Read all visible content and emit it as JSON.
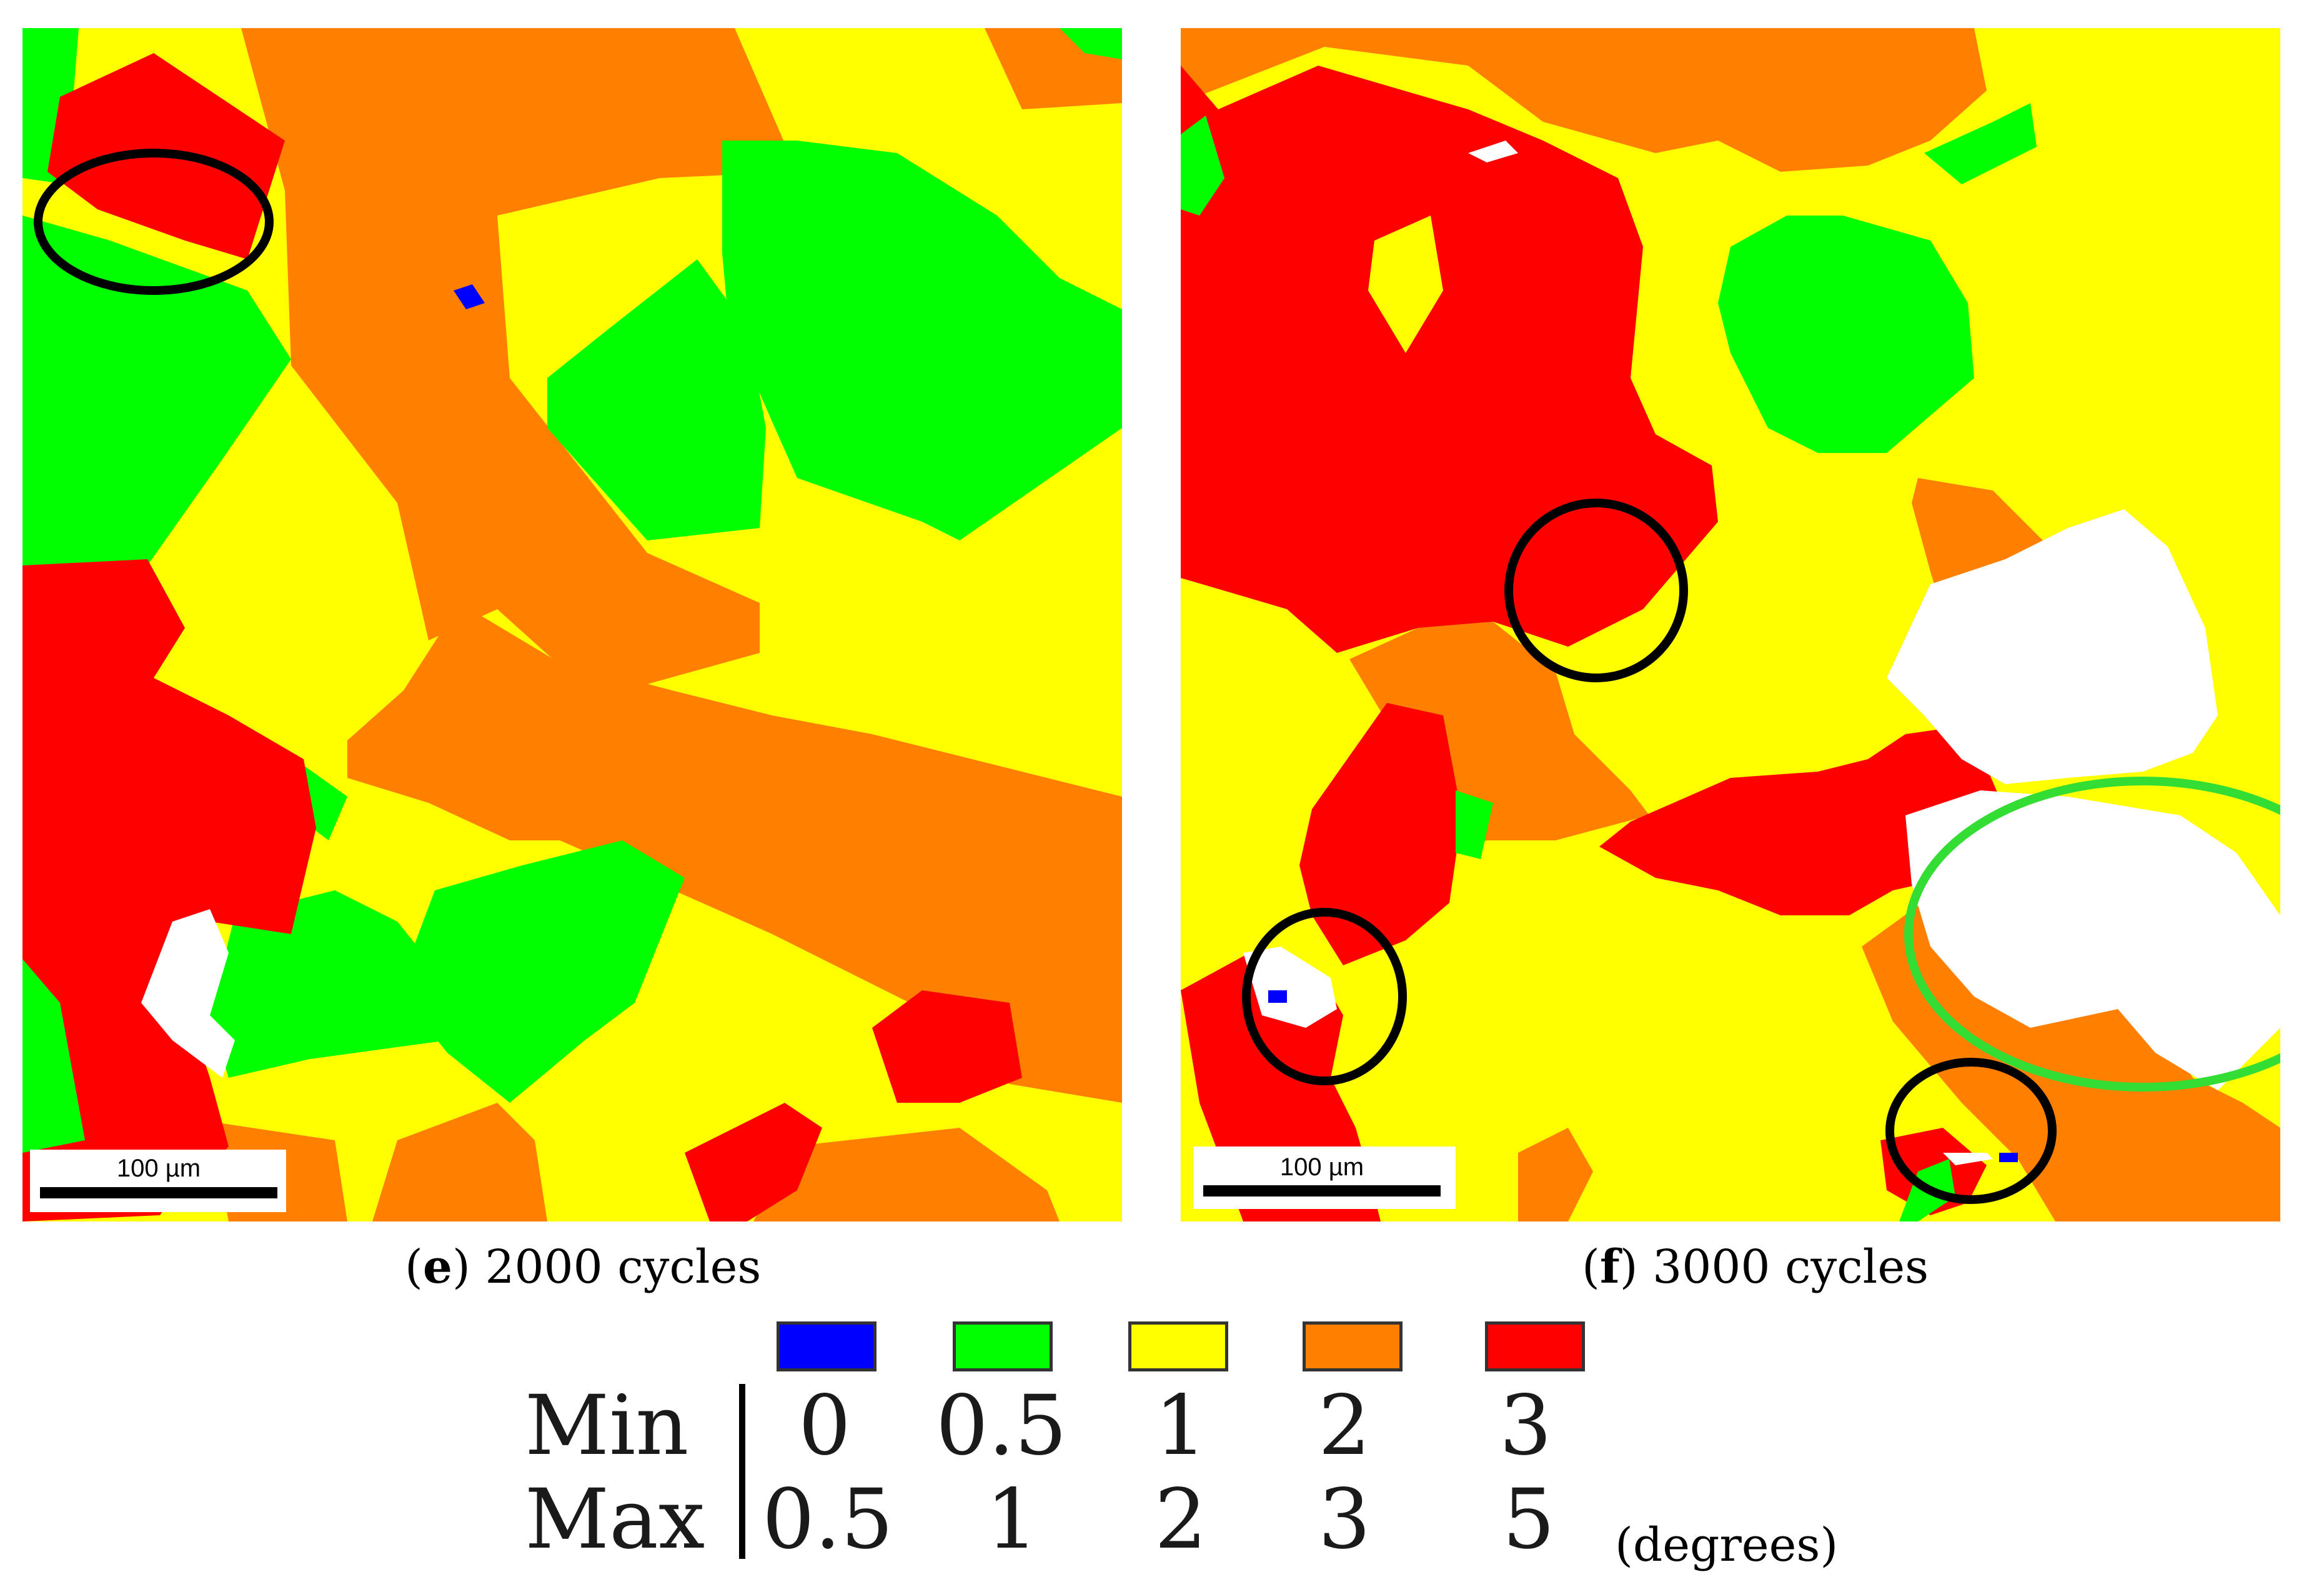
{
  "panels": [
    {
      "id": "e",
      "caption_letter": "e",
      "caption_text": " 2000 cycles",
      "scalebar_label": "100 µm"
    },
    {
      "id": "f",
      "caption_letter": "f",
      "caption_text": " 3000 cycles",
      "scalebar_label": "100 µm"
    }
  ],
  "legend": {
    "row_labels": {
      "min": "Min",
      "max": "Max"
    },
    "units": "(degrees)",
    "bins": [
      {
        "color": "#0000ff",
        "min": "0",
        "max": "0.5"
      },
      {
        "color": "#00ff00",
        "min": "0.5",
        "max": "1"
      },
      {
        "color": "#ffff00",
        "min": "1",
        "max": "2"
      },
      {
        "color": "#ff8000",
        "min": "2",
        "max": "3"
      },
      {
        "color": "#ff0000",
        "min": "3",
        "max": "5"
      }
    ]
  },
  "colors": {
    "grain_green": "#00ff00",
    "grain_yellow": "#ffff00",
    "grain_orange": "#ff8000",
    "grain_red": "#ff0000",
    "grain_blue": "#0000ff",
    "unindexed_white": "#ffffff",
    "annotation_black": "#000000",
    "annotation_green": "#33dd33"
  }
}
